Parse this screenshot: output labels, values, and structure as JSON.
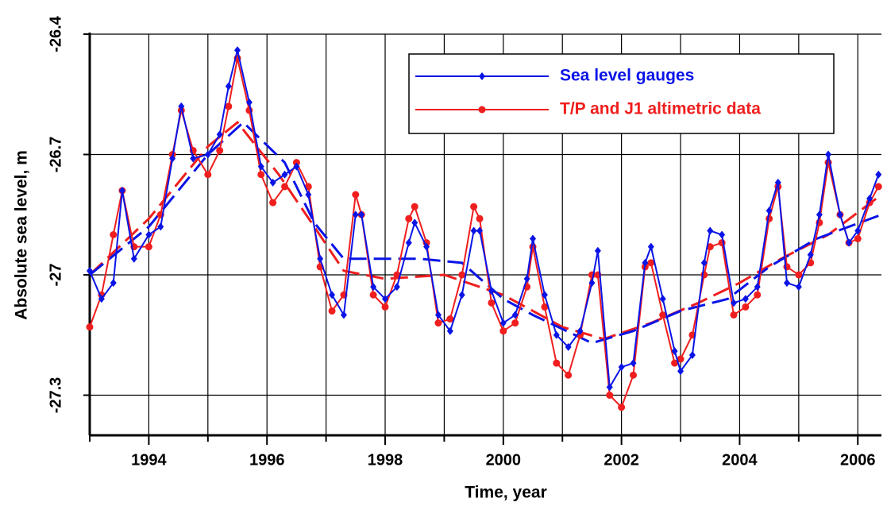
{
  "chart_data": {
    "type": "line",
    "xlabel": "Time, year",
    "ylabel": "Absolute sea level, m",
    "xlim": [
      1993,
      2006.4
    ],
    "ylim": [
      -27.4,
      -26.4
    ],
    "xticks": [
      1994,
      1996,
      1998,
      2000,
      2002,
      2004,
      2006
    ],
    "xminorticks": [
      1993,
      1995,
      1997,
      1999,
      2001,
      2003,
      2005
    ],
    "yticks": [
      -26.4,
      -26.7,
      -27,
      -27.3
    ],
    "grid": true,
    "legend": "upper right",
    "x": [
      1993.0,
      1993.2,
      1993.4,
      1993.55,
      1993.75,
      1994.0,
      1994.2,
      1994.4,
      1994.55,
      1994.75,
      1995.0,
      1995.2,
      1995.35,
      1995.5,
      1995.7,
      1995.9,
      1996.1,
      1996.3,
      1996.5,
      1996.7,
      1996.9,
      1997.1,
      1997.3,
      1997.5,
      1997.6,
      1997.8,
      1998.0,
      1998.2,
      1998.4,
      1998.5,
      1998.7,
      1998.9,
      1999.1,
      1999.3,
      1999.5,
      1999.6,
      1999.8,
      2000.0,
      2000.2,
      2000.4,
      2000.5,
      2000.7,
      2000.9,
      2001.1,
      2001.3,
      2001.5,
      2001.6,
      2001.8,
      2002.0,
      2002.2,
      2002.4,
      2002.5,
      2002.7,
      2002.9,
      2003.0,
      2003.2,
      2003.4,
      2003.5,
      2003.7,
      2003.9,
      2004.1,
      2004.3,
      2004.5,
      2004.65,
      2004.8,
      2005.0,
      2005.2,
      2005.35,
      2005.5,
      2005.7,
      2005.85,
      2006.0,
      2006.2,
      2006.35
    ],
    "series": [
      {
        "name": "Sea level gauges",
        "color": "#0a14e6",
        "marker": "diamond",
        "values": [
          -26.99,
          -27.06,
          -27.02,
          -26.79,
          -26.96,
          -26.9,
          -26.88,
          -26.71,
          -26.58,
          -26.71,
          -26.7,
          -26.65,
          -26.53,
          -26.44,
          -26.57,
          -26.73,
          -26.77,
          -26.75,
          -26.73,
          -26.8,
          -26.96,
          -27.05,
          -27.1,
          -26.85,
          -26.85,
          -27.03,
          -27.06,
          -27.03,
          -26.92,
          -26.87,
          -26.93,
          -27.1,
          -27.14,
          -27.05,
          -26.89,
          -26.89,
          -27.04,
          -27.12,
          -27.1,
          -27.01,
          -26.91,
          -27.05,
          -27.15,
          -27.18,
          -27.14,
          -27.02,
          -26.94,
          -27.28,
          -27.23,
          -27.22,
          -26.97,
          -26.93,
          -27.06,
          -27.19,
          -27.24,
          -27.2,
          -26.97,
          -26.89,
          -26.9,
          -27.07,
          -27.06,
          -27.03,
          -26.84,
          -26.77,
          -27.02,
          -27.03,
          -26.95,
          -26.85,
          -26.7,
          -26.85,
          -26.92,
          -26.89,
          -26.81,
          -26.75
        ]
      },
      {
        "name": "T/P and J1 altimetric data",
        "color": "#f01e1e",
        "marker": "circle",
        "values": [
          -27.13,
          -27.05,
          -26.9,
          -26.79,
          -26.93,
          -26.93,
          -26.85,
          -26.7,
          -26.59,
          -26.69,
          -26.75,
          -26.69,
          -26.58,
          -26.46,
          -26.59,
          -26.75,
          -26.82,
          -26.78,
          -26.72,
          -26.78,
          -26.98,
          -27.09,
          -27.05,
          -26.8,
          -26.85,
          -27.05,
          -27.08,
          -27.0,
          -26.86,
          -26.83,
          -26.92,
          -27.12,
          -27.11,
          -27.0,
          -26.83,
          -26.86,
          -27.07,
          -27.14,
          -27.12,
          -27.03,
          -26.93,
          -27.08,
          -27.22,
          -27.25,
          -27.15,
          -27.0,
          -27.0,
          -27.3,
          -27.33,
          -27.25,
          -26.98,
          -26.97,
          -27.1,
          -27.22,
          -27.21,
          -27.15,
          -27.0,
          -26.93,
          -26.92,
          -27.1,
          -27.08,
          -27.05,
          -26.86,
          -26.78,
          -26.98,
          -27.0,
          -26.97,
          -26.87,
          -26.72,
          -26.85,
          -26.92,
          -26.91,
          -26.82,
          -26.78
        ]
      },
      {
        "color": "#0a14e6",
        "dashed": true,
        "x": [
          1993,
          1994,
          1995,
          1995.6,
          1996.3,
          1996.8,
          1997.3,
          1998,
          1998.6,
          1999.3,
          2000,
          2000.5,
          2001.5,
          2002.2,
          2003,
          2003.8,
          2004.5,
          2005.3,
          2006.4
        ],
        "values": [
          -27.0,
          -26.88,
          -26.7,
          -26.62,
          -26.72,
          -26.87,
          -26.96,
          -26.96,
          -26.96,
          -26.97,
          -27.06,
          -27.1,
          -27.17,
          -27.14,
          -27.09,
          -27.06,
          -26.98,
          -26.91,
          -26.85
        ]
      },
      {
        "color": "#f01e1e",
        "dashed": true,
        "x": [
          1993,
          1994,
          1995,
          1995.5,
          1996.2,
          1996.8,
          1997.3,
          1998,
          1999,
          2000,
          2001,
          2001.7,
          2002.5,
          2003.3,
          2004,
          2004.7,
          2005.5,
          2006.4
        ],
        "values": [
          -27.0,
          -26.86,
          -26.68,
          -26.62,
          -26.75,
          -26.88,
          -26.99,
          -27.01,
          -27.0,
          -27.05,
          -27.13,
          -27.16,
          -27.12,
          -27.07,
          -27.02,
          -26.96,
          -26.9,
          -26.8
        ]
      }
    ]
  }
}
